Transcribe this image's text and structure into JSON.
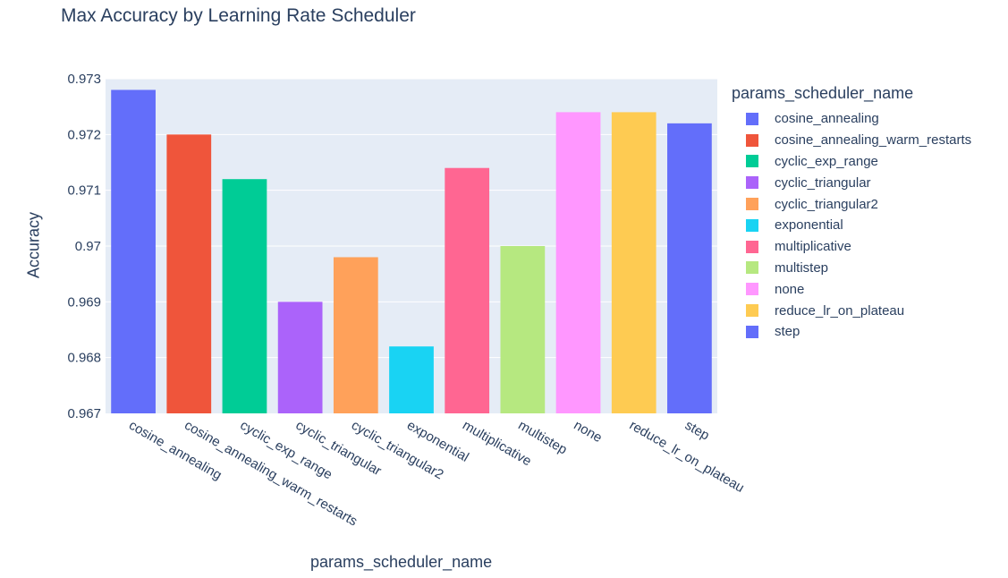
{
  "chart_data": {
    "type": "bar",
    "title": "Max Accuracy by Learning Rate Scheduler",
    "xlabel": "params_scheduler_name",
    "ylabel": "Accuracy",
    "ylim": [
      0.967,
      0.973
    ],
    "yticks": [
      "0.967",
      "0.968",
      "0.969",
      "0.97",
      "0.971",
      "0.972",
      "0.973"
    ],
    "grid": true,
    "legend_title": "params_scheduler_name",
    "legend_position": "right",
    "categories": [
      "cosine_annealing",
      "cosine_annealing_warm_restarts",
      "cyclic_exp_range",
      "cyclic_triangular",
      "cyclic_triangular2",
      "exponential",
      "multiplicative",
      "multistep",
      "none",
      "reduce_lr_on_plateau",
      "step"
    ],
    "values": [
      0.9728,
      0.972,
      0.9712,
      0.969,
      0.9698,
      0.9682,
      0.9714,
      0.97,
      0.9724,
      0.9724,
      0.9722
    ],
    "colors": [
      "#636efa",
      "#ef553b",
      "#00cc96",
      "#ab63fa",
      "#ffa15a",
      "#19d3f3",
      "#ff6692",
      "#b6e880",
      "#ff97ff",
      "#fecb52",
      "#636efa"
    ]
  }
}
